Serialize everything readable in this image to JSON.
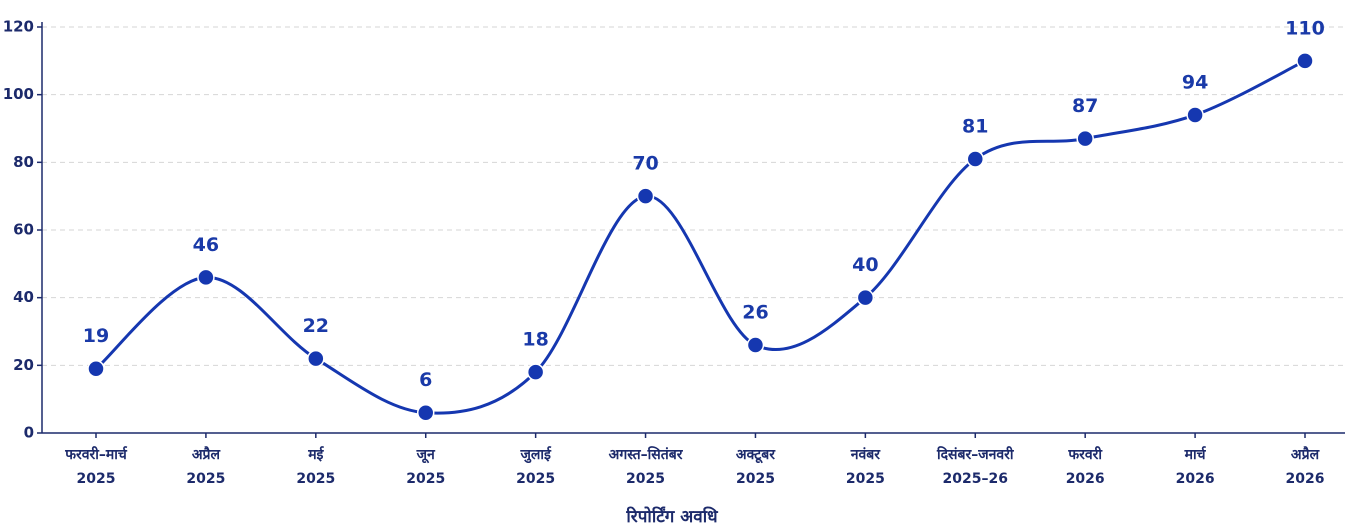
{
  "chart_data": {
    "type": "line",
    "x_label": "रिपोर्टिंग अवधि",
    "categories": [
      [
        "फरवरी–मार्च",
        "2025"
      ],
      [
        "अप्रैल",
        "2025"
      ],
      [
        "मई",
        "2025"
      ],
      [
        "जून",
        "2025"
      ],
      [
        "जुलाई",
        "2025"
      ],
      [
        "अगस्त–सितंबर",
        "2025"
      ],
      [
        "अक्टूबर",
        "2025"
      ],
      [
        "नवंबर",
        "2025"
      ],
      [
        "दिसंबर–जनवरी",
        "2025–26"
      ],
      [
        "फरवरी",
        "2026"
      ],
      [
        "मार्च",
        "2026"
      ],
      [
        "अप्रैल",
        "2026"
      ]
    ],
    "values": [
      19,
      46,
      22,
      6,
      18,
      70,
      26,
      40,
      81,
      87,
      94,
      110
    ],
    "color": "#1537b0",
    "ylim": [
      0,
      120
    ],
    "yticks": [
      0,
      20,
      40,
      60,
      80,
      100,
      120
    ],
    "grid": true
  }
}
